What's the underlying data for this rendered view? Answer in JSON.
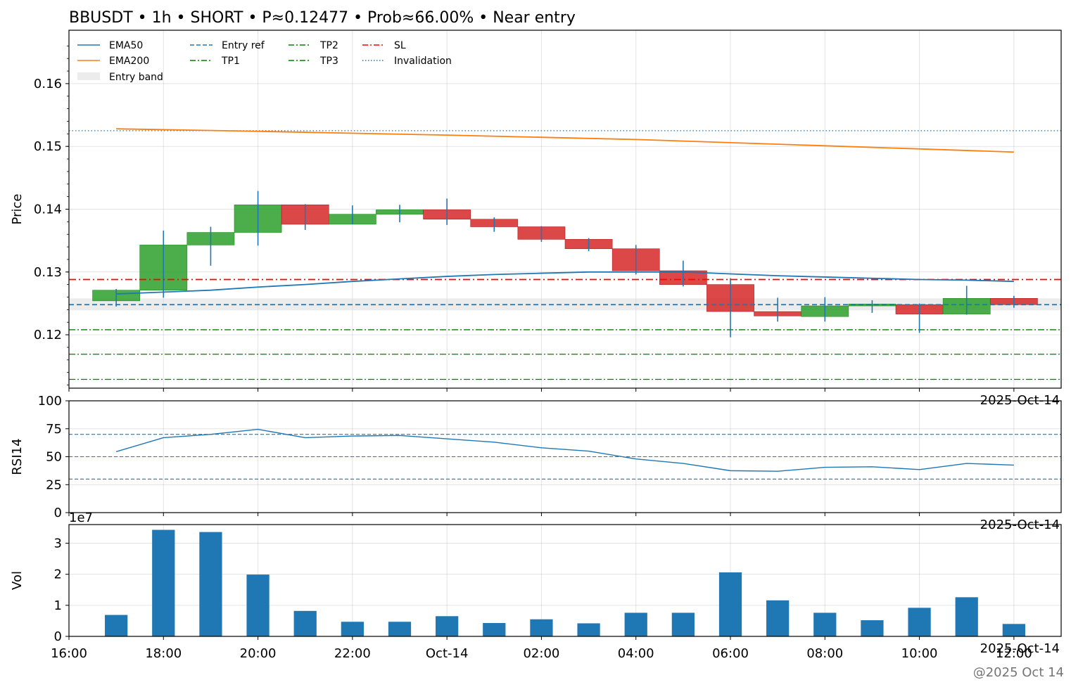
{
  "title": "BBUSDT • 1h • SHORT • P≈0.12477 • Prob≈66.00% • Near entry",
  "watermark": "@2025 Oct 14",
  "chart_data": [
    {
      "type": "candlestick",
      "ylabel": "Price",
      "ylim": [
        0.1115,
        0.1685
      ],
      "yticks": [
        "0.12",
        "0.13",
        "0.14",
        "0.15",
        "0.16"
      ],
      "yticks_values": [
        0.12,
        0.13,
        0.14,
        0.15,
        0.16
      ],
      "axis_corner_label": "2025-Oct-14",
      "grid": true,
      "legend_position": "top-left",
      "colors": {
        "up": "#2ca02c",
        "down": "#d62728",
        "wick": "#1f77b4",
        "ema50": "#1f77b4",
        "ema200": "#ff7f0e",
        "entry": "#1f77b4",
        "tp": "#008000",
        "sl": "#ff0000",
        "band": "#d9d9d9"
      },
      "legend": [
        {
          "label": "EMA50",
          "style": "solid",
          "color": "#1f77b4"
        },
        {
          "label": "EMA200",
          "style": "solid",
          "color": "#ff7f0e"
        },
        {
          "label": "Entry band",
          "style": "band",
          "color": "#d9d9d9"
        },
        {
          "label": "Entry ref",
          "style": "dashed",
          "color": "#1f77b4"
        },
        {
          "label": "TP1",
          "style": "dashdot",
          "color": "#008000"
        },
        {
          "label": "TP2",
          "style": "dashdot",
          "color": "#008000"
        },
        {
          "label": "TP3",
          "style": "dashdot",
          "color": "#008000"
        },
        {
          "label": "SL",
          "style": "dashdot",
          "color": "#ff0000"
        },
        {
          "label": "Invalidation",
          "style": "dotted",
          "color": "#1f77b4"
        }
      ],
      "levels": {
        "entry_ref": 0.1248,
        "entry_band": [
          0.1239,
          0.1258
        ],
        "tp1": 0.1208,
        "tp2": 0.1169,
        "tp3": 0.1129,
        "sl": 0.1288,
        "invalidation": 0.1525
      },
      "candles": [
        {
          "t": 17,
          "o": 0.1254,
          "c": 0.1271,
          "h": 0.1273,
          "l": 0.1245
        },
        {
          "t": 18,
          "o": 0.1271,
          "c": 0.1343,
          "h": 0.1366,
          "l": 0.1259
        },
        {
          "t": 19,
          "o": 0.1343,
          "c": 0.1363,
          "h": 0.1372,
          "l": 0.131
        },
        {
          "t": 20,
          "o": 0.1363,
          "c": 0.1407,
          "h": 0.1429,
          "l": 0.1342
        },
        {
          "t": 21,
          "o": 0.1407,
          "c": 0.1376,
          "h": 0.1408,
          "l": 0.1367
        },
        {
          "t": 22,
          "o": 0.1376,
          "c": 0.1392,
          "h": 0.1406,
          "l": 0.1376
        },
        {
          "t": 23,
          "o": 0.1392,
          "c": 0.1399,
          "h": 0.1407,
          "l": 0.1379
        },
        {
          "t": 24,
          "o": 0.1399,
          "c": 0.1384,
          "h": 0.1417,
          "l": 0.1375
        },
        {
          "t": 25,
          "o": 0.1384,
          "c": 0.1372,
          "h": 0.1387,
          "l": 0.1364
        },
        {
          "t": 26,
          "o": 0.1372,
          "c": 0.1352,
          "h": 0.1373,
          "l": 0.1348
        },
        {
          "t": 27,
          "o": 0.1352,
          "c": 0.1337,
          "h": 0.1354,
          "l": 0.1333
        },
        {
          "t": 28,
          "o": 0.1337,
          "c": 0.1302,
          "h": 0.1343,
          "l": 0.1296
        },
        {
          "t": 29,
          "o": 0.1302,
          "c": 0.128,
          "h": 0.1318,
          "l": 0.1277
        },
        {
          "t": 30,
          "o": 0.128,
          "c": 0.1237,
          "h": 0.129,
          "l": 0.1196
        },
        {
          "t": 31,
          "o": 0.1237,
          "c": 0.123,
          "h": 0.1259,
          "l": 0.1221
        },
        {
          "t": 32,
          "o": 0.1229,
          "c": 0.1246,
          "h": 0.126,
          "l": 0.1221
        },
        {
          "t": 33,
          "o": 0.1246,
          "c": 0.1249,
          "h": 0.1255,
          "l": 0.1235
        },
        {
          "t": 34,
          "o": 0.1248,
          "c": 0.1233,
          "h": 0.125,
          "l": 0.1203
        },
        {
          "t": 35,
          "o": 0.1233,
          "c": 0.1258,
          "h": 0.1278,
          "l": 0.1232
        },
        {
          "t": 36,
          "o": 0.1258,
          "c": 0.1248,
          "h": 0.1262,
          "l": 0.1243
        }
      ],
      "ema50": {
        "t": [
          17,
          18,
          19,
          20,
          21,
          22,
          23,
          24,
          25,
          26,
          27,
          28,
          29,
          30,
          31,
          32,
          33,
          34,
          35,
          36
        ],
        "v": [
          0.1265,
          0.1268,
          0.1271,
          0.1276,
          0.128,
          0.1285,
          0.1289,
          0.1293,
          0.1296,
          0.1298,
          0.13,
          0.13,
          0.13,
          0.1297,
          0.1294,
          0.1292,
          0.129,
          0.1288,
          0.1287,
          0.1285
        ]
      },
      "ema200": {
        "t": [
          17,
          20,
          24,
          28,
          32,
          36
        ],
        "v": [
          0.1528,
          0.1524,
          0.1518,
          0.1511,
          0.1501,
          0.1491
        ]
      }
    },
    {
      "type": "line",
      "ylabel": "RSI14",
      "ylim": [
        0,
        100
      ],
      "yticks": [
        "0",
        "25",
        "50",
        "75",
        "100"
      ],
      "yticks_values": [
        0,
        25,
        50,
        75,
        100
      ],
      "axis_corner_label": "2025-Oct-14",
      "reference_lines": [
        30,
        50,
        70
      ],
      "series": [
        {
          "x": [
            17,
            18,
            19,
            20,
            21,
            22,
            23,
            24,
            25,
            26,
            27,
            28,
            29,
            30,
            31,
            32,
            33,
            34,
            35,
            36
          ],
          "values": [
            54.5,
            67,
            70,
            74.5,
            67,
            68.5,
            69,
            66,
            63,
            58,
            55,
            48,
            44,
            37.5,
            37,
            40.5,
            41,
            38.5,
            44,
            42.5
          ]
        }
      ]
    },
    {
      "type": "bar",
      "ylabel": "Vol",
      "ylim": [
        0,
        3.6
      ],
      "yticks": [
        "0",
        "1",
        "2",
        "3"
      ],
      "yticks_values": [
        0,
        1,
        2,
        3
      ],
      "scale_label": "1e7",
      "x": [
        17,
        18,
        19,
        20,
        21,
        22,
        23,
        24,
        25,
        26,
        27,
        28,
        29,
        30,
        31,
        32,
        33,
        34,
        35,
        36
      ],
      "values": [
        0.69,
        3.43,
        3.36,
        1.99,
        0.82,
        0.47,
        0.47,
        0.65,
        0.43,
        0.55,
        0.42,
        0.76,
        0.76,
        2.06,
        1.16,
        0.76,
        0.52,
        0.92,
        1.26,
        0.4
      ],
      "xlim": [
        16,
        37
      ],
      "xticks": [
        {
          "t": 16,
          "label": "16:00"
        },
        {
          "t": 18,
          "label": "18:00"
        },
        {
          "t": 20,
          "label": "20:00"
        },
        {
          "t": 22,
          "label": "22:00"
        },
        {
          "t": 24,
          "label": "Oct-14"
        },
        {
          "t": 26,
          "label": "02:00"
        },
        {
          "t": 28,
          "label": "04:00"
        },
        {
          "t": 30,
          "label": "06:00"
        },
        {
          "t": 32,
          "label": "08:00"
        },
        {
          "t": 34,
          "label": "10:00"
        },
        {
          "t": 36,
          "label": "12:00"
        }
      ],
      "axis_corner_label": "2025-Oct-14"
    }
  ]
}
